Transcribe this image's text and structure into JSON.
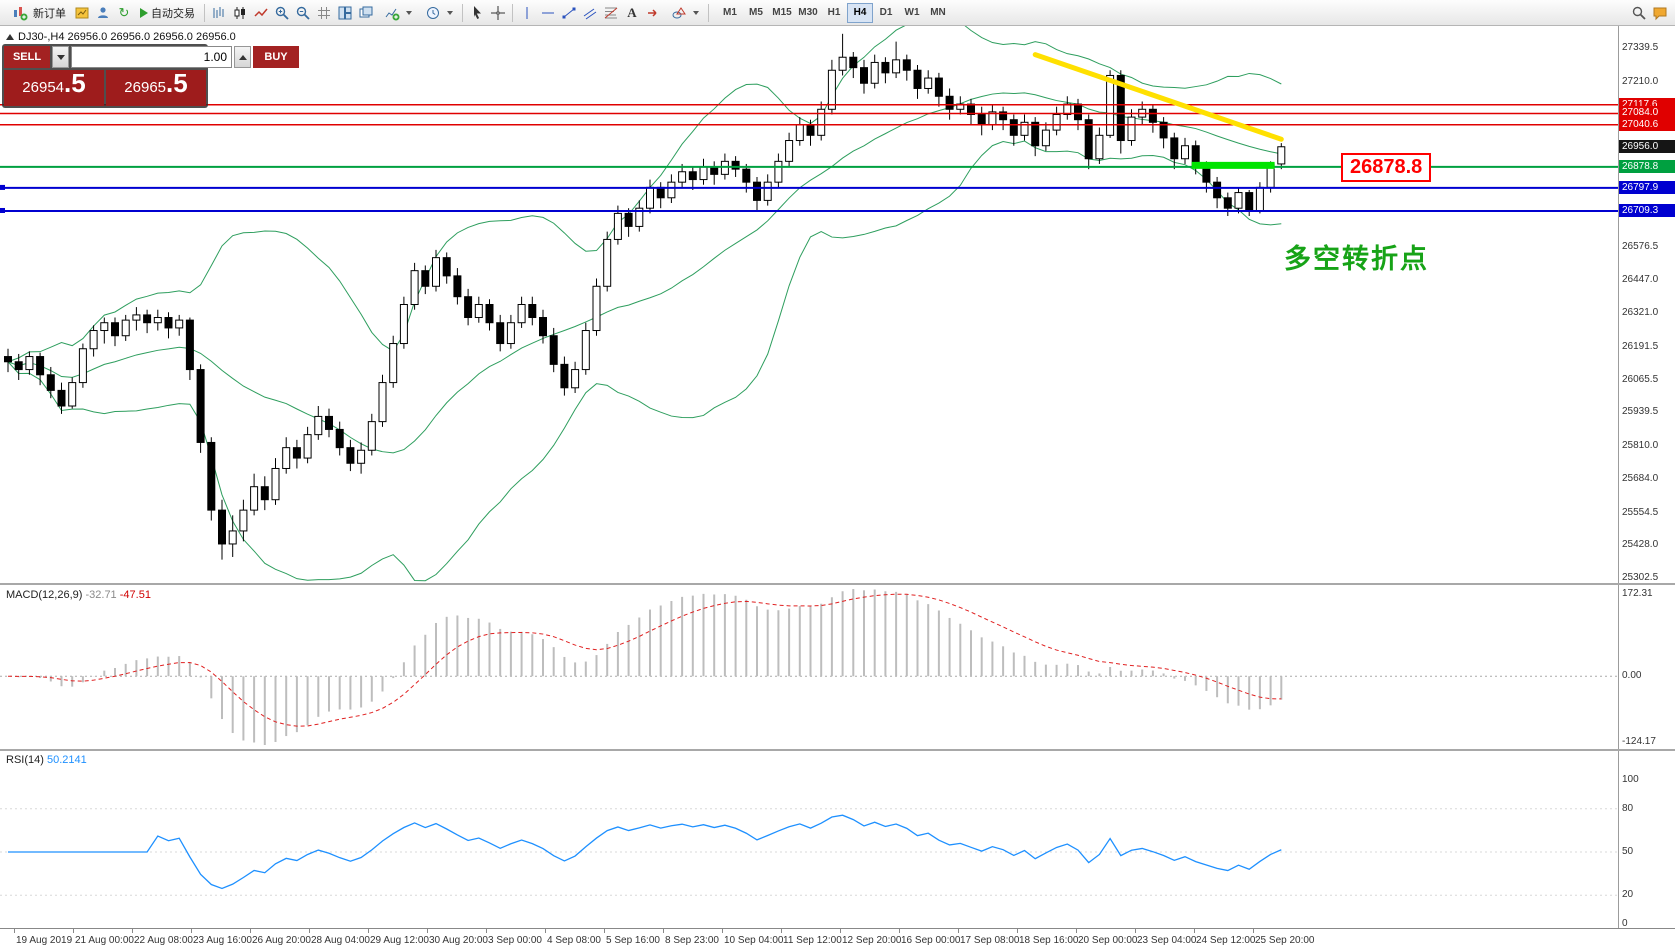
{
  "toolbar": {
    "new_order_label": "新订单",
    "auto_trading_label": "自动交易",
    "timeframes": [
      "M1",
      "M5",
      "M15",
      "M30",
      "H1",
      "H4",
      "D1",
      "W1",
      "MN"
    ],
    "active_timeframe": "H4"
  },
  "icons": {
    "refresh": "↻",
    "text_tool": "A"
  },
  "trade_panel": {
    "sell_label": "SELL",
    "buy_label": "BUY",
    "volume": "1.00",
    "sell_price_main": "26954",
    "sell_price_pips": ".5",
    "buy_price_main": "26965",
    "buy_price_pips": ".5"
  },
  "chart": {
    "info_line": "DJ30-,H4  26956.0 26956.0 26956.0 26956.0",
    "annotation": "多空转折点",
    "price_callout": "26878.8",
    "current_price": "26956.0"
  },
  "price_axis": {
    "ticks": [
      "27339.5",
      "27210.0",
      "26576.5",
      "26447.0",
      "26321.0",
      "26191.5",
      "26065.5",
      "25939.5",
      "25810.0",
      "25684.0",
      "25554.5",
      "25428.0",
      "25302.5"
    ],
    "marks": [
      {
        "value": "27117.6",
        "color": "#e00000"
      },
      {
        "value": "27084.0",
        "color": "#e00000"
      },
      {
        "value": "27040.6",
        "color": "#e00000"
      },
      {
        "value": "26956.0",
        "color": "#151515"
      },
      {
        "value": "26878.8",
        "color": "#00a040"
      },
      {
        "value": "26797.9",
        "color": "#0000d0"
      },
      {
        "value": "26709.3",
        "color": "#0000d0"
      }
    ]
  },
  "time_axis": [
    "19 Aug 2019",
    "21 Aug 00:00",
    "22 Aug 08:00",
    "23 Aug 16:00",
    "26 Aug 20:00",
    "28 Aug 04:00",
    "29 Aug 12:00",
    "30 Aug 20:00",
    "3 Sep 00:00",
    "4 Sep 08:00",
    "5 Sep 16:00",
    "8 Sep 23:00",
    "10 Sep 04:00",
    "11 Sep 12:00",
    "12 Sep 20:00",
    "16 Sep 00:00",
    "17 Sep 08:00",
    "18 Sep 16:00",
    "20 Sep 00:00",
    "23 Sep 04:00",
    "24 Sep 12:00",
    "25 Sep 20:00"
  ],
  "macd": {
    "label": "MACD(12,26,9)",
    "value_main": "-32.71",
    "value_signal": "-47.51",
    "scale_top": "172.31",
    "scale_zero": "0.00",
    "scale_bottom": "-124.17",
    "fast": 12,
    "slow": 26,
    "signal": 9
  },
  "rsi": {
    "label": "RSI(14)",
    "value": "50.2141",
    "period": 14,
    "scale": [
      "100",
      "80",
      "50",
      "20",
      "0"
    ]
  },
  "chart_data": {
    "type": "candlestick",
    "symbol": "DJ30-",
    "timeframe": "H4",
    "price_range": [
      25280,
      27420
    ],
    "bollinger": {
      "period": 20,
      "deviation": 2
    },
    "levels": {
      "red": [
        27117.6,
        27084.0,
        27040.6
      ],
      "green": 26878.8,
      "blue": [
        26797.9,
        26709.3
      ]
    },
    "trendline": {
      "c1": 96,
      "p1": 27310,
      "c2": 119,
      "p2": 26985,
      "color": "#ffe000"
    },
    "highlight": {
      "c1": 111,
      "c2": 118,
      "price": 26878.8,
      "color": "#00e400"
    },
    "candles": [
      [
        26150,
        26180,
        26090,
        26130
      ],
      [
        26130,
        26160,
        26060,
        26100
      ],
      [
        26100,
        26170,
        26080,
        26150
      ],
      [
        26150,
        26165,
        26040,
        26080
      ],
      [
        26080,
        26110,
        25990,
        26020
      ],
      [
        26020,
        26050,
        25930,
        25960
      ],
      [
        25960,
        26070,
        25950,
        26050
      ],
      [
        26050,
        26200,
        26030,
        26180
      ],
      [
        26180,
        26270,
        26150,
        26250
      ],
      [
        26250,
        26300,
        26200,
        26280
      ],
      [
        26280,
        26300,
        26190,
        26230
      ],
      [
        26230,
        26310,
        26210,
        26290
      ],
      [
        26290,
        26340,
        26250,
        26310
      ],
      [
        26310,
        26330,
        26240,
        26280
      ],
      [
        26280,
        26330,
        26250,
        26300
      ],
      [
        26300,
        26320,
        26220,
        26260
      ],
      [
        26260,
        26310,
        26230,
        26290
      ],
      [
        26290,
        26300,
        26060,
        26100
      ],
      [
        26100,
        26120,
        25780,
        25820
      ],
      [
        25820,
        25840,
        25520,
        25560
      ],
      [
        25560,
        25600,
        25370,
        25430
      ],
      [
        25430,
        25540,
        25380,
        25480
      ],
      [
        25480,
        25600,
        25440,
        25560
      ],
      [
        25560,
        25700,
        25540,
        25650
      ],
      [
        25650,
        25690,
        25560,
        25600
      ],
      [
        25600,
        25760,
        25580,
        25720
      ],
      [
        25720,
        25840,
        25700,
        25800
      ],
      [
        25800,
        25830,
        25720,
        25760
      ],
      [
        25760,
        25880,
        25740,
        25850
      ],
      [
        25850,
        25960,
        25830,
        25920
      ],
      [
        25920,
        25950,
        25840,
        25870
      ],
      [
        25870,
        25900,
        25770,
        25800
      ],
      [
        25800,
        25830,
        25710,
        25740
      ],
      [
        25740,
        25820,
        25700,
        25790
      ],
      [
        25790,
        25930,
        25770,
        25900
      ],
      [
        25900,
        26080,
        25880,
        26050
      ],
      [
        26050,
        26230,
        26030,
        26200
      ],
      [
        26200,
        26380,
        26180,
        26350
      ],
      [
        26350,
        26510,
        26330,
        26480
      ],
      [
        26480,
        26500,
        26390,
        26420
      ],
      [
        26420,
        26560,
        26400,
        26530
      ],
      [
        26530,
        26550,
        26430,
        26460
      ],
      [
        26460,
        26490,
        26350,
        26380
      ],
      [
        26380,
        26410,
        26270,
        26300
      ],
      [
        26300,
        26380,
        26280,
        26350
      ],
      [
        26350,
        26370,
        26250,
        26280
      ],
      [
        26280,
        26310,
        26170,
        26200
      ],
      [
        26200,
        26310,
        26180,
        26280
      ],
      [
        26280,
        26380,
        26260,
        26350
      ],
      [
        26350,
        26380,
        26270,
        26300
      ],
      [
        26300,
        26330,
        26200,
        26230
      ],
      [
        26230,
        26260,
        26090,
        26120
      ],
      [
        26120,
        26150,
        26000,
        26030
      ],
      [
        26030,
        26130,
        26010,
        26100
      ],
      [
        26100,
        26280,
        26080,
        26250
      ],
      [
        26250,
        26450,
        26230,
        26420
      ],
      [
        26420,
        26630,
        26400,
        26600
      ],
      [
        26600,
        26730,
        26580,
        26700
      ],
      [
        26700,
        26720,
        26610,
        26650
      ],
      [
        26650,
        26750,
        26630,
        26720
      ],
      [
        26720,
        26830,
        26700,
        26800
      ],
      [
        26800,
        26820,
        26720,
        26760
      ],
      [
        26760,
        26850,
        26740,
        26820
      ],
      [
        26820,
        26890,
        26800,
        26860
      ],
      [
        26860,
        26880,
        26790,
        26830
      ],
      [
        26830,
        26910,
        26810,
        26880
      ],
      [
        26880,
        26900,
        26810,
        26850
      ],
      [
        26850,
        26930,
        26830,
        26900
      ],
      [
        26900,
        26920,
        26840,
        26870
      ],
      [
        26870,
        26890,
        26780,
        26820
      ],
      [
        26820,
        26840,
        26710,
        26750
      ],
      [
        26750,
        26850,
        26730,
        26820
      ],
      [
        26820,
        26930,
        26800,
        26900
      ],
      [
        26900,
        27010,
        26880,
        26980
      ],
      [
        26980,
        27070,
        26960,
        27040
      ],
      [
        27040,
        27060,
        26960,
        27000
      ],
      [
        27000,
        27130,
        26980,
        27100
      ],
      [
        27100,
        27290,
        27080,
        27250
      ],
      [
        27250,
        27390,
        27230,
        27300
      ],
      [
        27300,
        27320,
        27220,
        27260
      ],
      [
        27260,
        27290,
        27160,
        27200
      ],
      [
        27200,
        27310,
        27180,
        27280
      ],
      [
        27280,
        27300,
        27200,
        27240
      ],
      [
        27240,
        27360,
        27220,
        27290
      ],
      [
        27290,
        27310,
        27210,
        27250
      ],
      [
        27250,
        27270,
        27140,
        27180
      ],
      [
        27180,
        27250,
        27160,
        27220
      ],
      [
        27220,
        27240,
        27110,
        27150
      ],
      [
        27150,
        27180,
        27060,
        27100
      ],
      [
        27100,
        27150,
        27080,
        27120
      ],
      [
        27120,
        27140,
        27040,
        27080
      ],
      [
        27080,
        27110,
        27000,
        27040
      ],
      [
        27040,
        27120,
        27020,
        27090
      ],
      [
        27090,
        27110,
        27020,
        27060
      ],
      [
        27060,
        27080,
        26960,
        27000
      ],
      [
        27000,
        27080,
        26980,
        27050
      ],
      [
        27050,
        27070,
        26920,
        26960
      ],
      [
        26960,
        27050,
        26940,
        27020
      ],
      [
        27020,
        27110,
        27000,
        27080
      ],
      [
        27080,
        27150,
        27060,
        27120
      ],
      [
        27120,
        27140,
        27020,
        27060
      ],
      [
        27060,
        27080,
        26870,
        26910
      ],
      [
        26910,
        27030,
        26890,
        27000
      ],
      [
        27000,
        27250,
        26990,
        27230
      ],
      [
        27230,
        27250,
        26930,
        26980
      ],
      [
        26980,
        27100,
        26960,
        27070
      ],
      [
        27070,
        27130,
        27040,
        27100
      ],
      [
        27100,
        27120,
        27010,
        27050
      ],
      [
        27050,
        27070,
        26950,
        26990
      ],
      [
        26990,
        27010,
        26870,
        26910
      ],
      [
        26910,
        26990,
        26890,
        26960
      ],
      [
        26960,
        26980,
        26850,
        26880
      ],
      [
        26880,
        26900,
        26780,
        26820
      ],
      [
        26820,
        26840,
        26720,
        26760
      ],
      [
        26760,
        26780,
        26690,
        26720
      ],
      [
        26720,
        26800,
        26700,
        26780
      ],
      [
        26780,
        26790,
        26690,
        26710
      ],
      [
        26710,
        26820,
        26700,
        26800
      ],
      [
        26800,
        26900,
        26780,
        26890
      ],
      [
        26890,
        26970,
        26870,
        26956
      ]
    ]
  }
}
